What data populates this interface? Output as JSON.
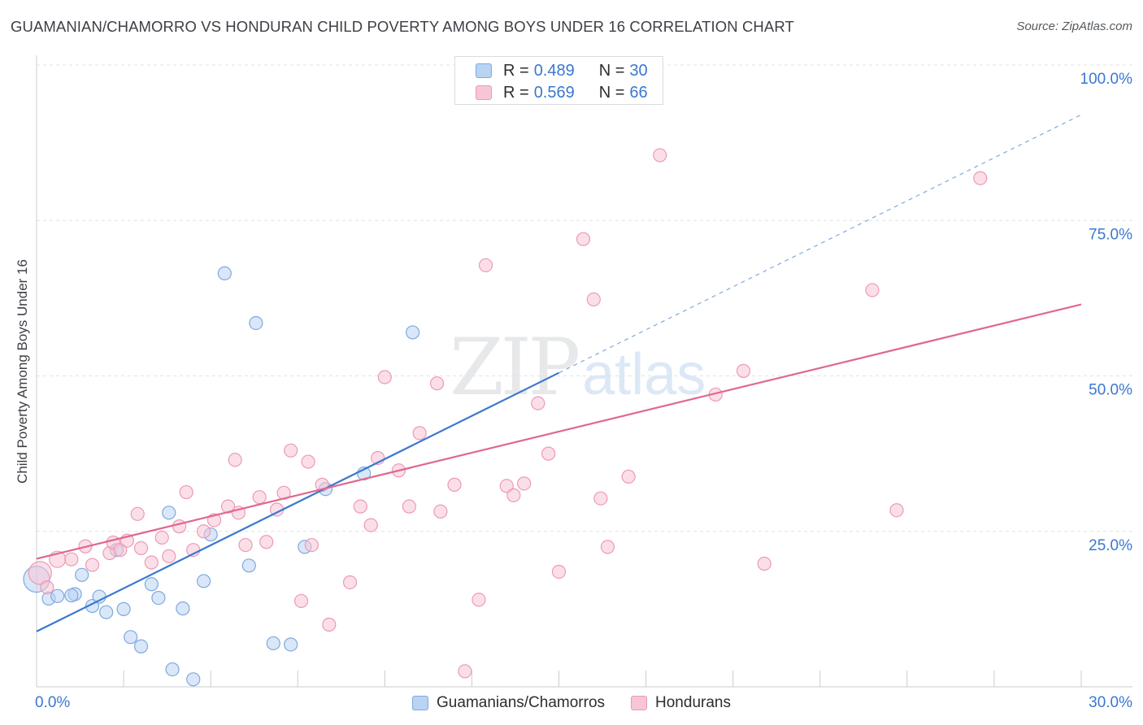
{
  "title": "GUAMANIAN/CHAMORRO VS HONDURAN CHILD POVERTY AMONG BOYS UNDER 16 CORRELATION CHART",
  "source": "Source: ZipAtlas.com",
  "watermark": {
    "zip": "ZIP",
    "atlas": "atlas"
  },
  "colors": {
    "blue": "#3a78d0",
    "blue_fill": "#b9d3f3",
    "blue_stroke": "#7fa9de",
    "pink": "#e0688f",
    "pink_fill": "#f8c5d5",
    "pink_stroke": "#ec9ab4",
    "grid": "#dfe2e6",
    "axis_text": "#3a78d0"
  },
  "legend_top": [
    {
      "series": "blue",
      "r_label": "R =",
      "r_value": "0.489",
      "n_label": "N =",
      "n_value": "30"
    },
    {
      "series": "pink",
      "r_label": "R =",
      "r_value": "0.569",
      "n_label": "N =",
      "n_value": "66"
    }
  ],
  "chart_data": {
    "type": "scatter",
    "title": "GUAMANIAN/CHAMORRO VS HONDURAN CHILD POVERTY AMONG BOYS UNDER 16 CORRELATION CHART",
    "xlabel": "",
    "ylabel": "Child Poverty Among Boys Under 16",
    "xlim": [
      0,
      30
    ],
    "ylim": [
      0,
      100
    ],
    "x_tick_labels": [
      "0.0%",
      "30.0%"
    ],
    "y_ticks": [
      25,
      50,
      75,
      100
    ],
    "y_tick_labels": [
      "25.0%",
      "50.0%",
      "75.0%",
      "100.0%"
    ],
    "grid": true,
    "legend_position": "bottom",
    "series": [
      {
        "name": "Guamanians/Chamorros",
        "color": "blue",
        "trend": {
          "x0": 0,
          "y0": 8.9,
          "x1": 15,
          "y1": 50.5,
          "dashed_to_x": 30,
          "dashed_to_y": 92.0
        },
        "points": [
          [
            0.0,
            17.3,
            16
          ],
          [
            0.35,
            14.2,
            8
          ],
          [
            0.6,
            14.6,
            8
          ],
          [
            1.1,
            14.9,
            8
          ],
          [
            1.3,
            18.0,
            8
          ],
          [
            1.6,
            13.0,
            8
          ],
          [
            1.8,
            14.5,
            8
          ],
          [
            2.0,
            12.0,
            8
          ],
          [
            2.5,
            12.5,
            8
          ],
          [
            2.7,
            8.0,
            8
          ],
          [
            3.0,
            6.5,
            8
          ],
          [
            3.3,
            16.5,
            8
          ],
          [
            3.5,
            14.3,
            8
          ],
          [
            3.8,
            28.0,
            8
          ],
          [
            3.9,
            2.8,
            8
          ],
          [
            4.2,
            12.6,
            8
          ],
          [
            4.5,
            1.2,
            8
          ],
          [
            4.8,
            17.0,
            8
          ],
          [
            5.0,
            24.5,
            8
          ],
          [
            5.4,
            66.5,
            8
          ],
          [
            6.1,
            19.5,
            8
          ],
          [
            6.3,
            58.5,
            8
          ],
          [
            6.8,
            7.0,
            8
          ],
          [
            7.3,
            6.8,
            8
          ],
          [
            7.7,
            22.5,
            8
          ],
          [
            8.3,
            31.8,
            8
          ],
          [
            9.4,
            34.3,
            8
          ],
          [
            10.8,
            57.0,
            8
          ],
          [
            2.3,
            22.0,
            8
          ],
          [
            1.0,
            14.7,
            8
          ]
        ]
      },
      {
        "name": "Hondurans",
        "color": "pink",
        "trend": {
          "x0": 0,
          "y0": 20.6,
          "x1": 30,
          "y1": 61.5
        },
        "points": [
          [
            0.1,
            18.3,
            14
          ],
          [
            0.6,
            20.5,
            10
          ],
          [
            1.0,
            20.5,
            8
          ],
          [
            1.4,
            22.6,
            8
          ],
          [
            1.6,
            19.6,
            8
          ],
          [
            2.1,
            21.5,
            8
          ],
          [
            2.2,
            23.2,
            8
          ],
          [
            2.4,
            22.0,
            8
          ],
          [
            2.6,
            23.5,
            8
          ],
          [
            2.9,
            27.8,
            8
          ],
          [
            3.0,
            22.3,
            8
          ],
          [
            3.3,
            20.0,
            8
          ],
          [
            3.6,
            24.0,
            8
          ],
          [
            3.8,
            21.0,
            8
          ],
          [
            4.1,
            25.8,
            8
          ],
          [
            4.3,
            31.3,
            8
          ],
          [
            4.5,
            22.0,
            8
          ],
          [
            4.8,
            25.0,
            8
          ],
          [
            5.1,
            26.8,
            8
          ],
          [
            5.5,
            29.0,
            8
          ],
          [
            5.7,
            36.5,
            8
          ],
          [
            5.8,
            28.0,
            8
          ],
          [
            6.0,
            22.8,
            8
          ],
          [
            6.4,
            30.5,
            8
          ],
          [
            6.6,
            23.3,
            8
          ],
          [
            6.9,
            28.5,
            8
          ],
          [
            7.1,
            31.2,
            8
          ],
          [
            7.3,
            38.0,
            8
          ],
          [
            7.6,
            13.8,
            8
          ],
          [
            7.8,
            36.2,
            8
          ],
          [
            7.9,
            22.8,
            8
          ],
          [
            8.2,
            32.5,
            8
          ],
          [
            8.4,
            10.0,
            8
          ],
          [
            9.0,
            16.8,
            8
          ],
          [
            9.3,
            29.0,
            8
          ],
          [
            9.6,
            26.0,
            8
          ],
          [
            9.8,
            36.8,
            8
          ],
          [
            10.0,
            49.8,
            8
          ],
          [
            10.4,
            34.8,
            8
          ],
          [
            10.7,
            29.0,
            8
          ],
          [
            11.0,
            40.8,
            8
          ],
          [
            11.6,
            28.2,
            8
          ],
          [
            11.5,
            48.8,
            8
          ],
          [
            12.0,
            32.5,
            8
          ],
          [
            12.3,
            2.5,
            8
          ],
          [
            12.7,
            14.0,
            8
          ],
          [
            12.9,
            67.8,
            8
          ],
          [
            13.5,
            32.3,
            8
          ],
          [
            13.7,
            30.8,
            8
          ],
          [
            14.0,
            32.7,
            8
          ],
          [
            14.4,
            45.6,
            8
          ],
          [
            14.7,
            37.5,
            8
          ],
          [
            15.0,
            18.5,
            8
          ],
          [
            15.7,
            72.0,
            8
          ],
          [
            16.0,
            62.3,
            8
          ],
          [
            16.2,
            30.3,
            8
          ],
          [
            16.4,
            22.5,
            8
          ],
          [
            17.0,
            33.8,
            8
          ],
          [
            17.9,
            85.5,
            8
          ],
          [
            20.3,
            50.8,
            8
          ],
          [
            20.9,
            19.8,
            8
          ],
          [
            24.0,
            63.8,
            8
          ],
          [
            24.7,
            28.4,
            8
          ],
          [
            27.1,
            81.8,
            8
          ],
          [
            19.5,
            47.0,
            8
          ],
          [
            0.3,
            16.0,
            8
          ]
        ]
      }
    ]
  }
}
